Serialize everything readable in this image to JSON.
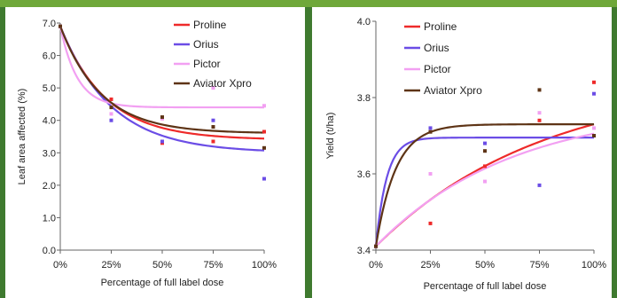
{
  "chart_data": [
    {
      "type": "line",
      "ylabel": "Leaf area affected (%)",
      "xlabel": "Percentage of full label dose",
      "x_ticks": [
        "0%",
        "25%",
        "50%",
        "75%",
        "100%"
      ],
      "y_ticks": [
        "0.0",
        "1.0",
        "2.0",
        "3.0",
        "4.0",
        "5.0",
        "6.0",
        "7.0"
      ],
      "xlim": [
        0,
        100
      ],
      "ylim": [
        0,
        7
      ],
      "legend": "top-right",
      "grid": false,
      "series": [
        {
          "name": "Proline",
          "color": "#ee2a2a",
          "points": [
            [
              0,
              6.9
            ],
            [
              25,
              4.65
            ],
            [
              50,
              3.3
            ],
            [
              75,
              3.35
            ],
            [
              100,
              3.65
            ]
          ],
          "curve": {
            "asymptote": 3.4,
            "amplitude": 3.5,
            "rate": 0.045
          }
        },
        {
          "name": "Orius",
          "color": "#6b4de6",
          "points": [
            [
              0,
              6.9
            ],
            [
              25,
              4.0
            ],
            [
              50,
              3.35
            ],
            [
              75,
              4.0
            ],
            [
              100,
              2.2
            ]
          ],
          "curve": {
            "asymptote": 3.0,
            "amplitude": 3.9,
            "rate": 0.04
          }
        },
        {
          "name": "Pictor",
          "color": "#f2a0f2",
          "points": [
            [
              0,
              6.9
            ],
            [
              25,
              4.2
            ],
            [
              50,
              4.05
            ],
            [
              75,
              5.0
            ],
            [
              100,
              4.45
            ]
          ],
          "curve": {
            "asymptote": 4.4,
            "amplitude": 2.5,
            "rate": 0.12
          }
        },
        {
          "name": "Aviator Xpro",
          "color": "#5e3416",
          "points": [
            [
              0,
              6.9
            ],
            [
              25,
              4.4
            ],
            [
              50,
              4.1
            ],
            [
              75,
              3.8
            ],
            [
              100,
              3.15
            ]
          ],
          "curve": {
            "asymptote": 3.6,
            "amplitude": 3.3,
            "rate": 0.05
          }
        }
      ]
    },
    {
      "type": "line",
      "ylabel": "Yield (t/ha)",
      "xlabel": "Percentage of full label dose",
      "x_ticks": [
        "0%",
        "25%",
        "50%",
        "75%",
        "100%"
      ],
      "y_ticks": [
        "3.4",
        "3.6",
        "3.8",
        "4.0"
      ],
      "xlim": [
        0,
        100
      ],
      "ylim": [
        3.4,
        4.0
      ],
      "legend": "top-left",
      "grid": false,
      "series": [
        {
          "name": "Proline",
          "color": "#ee2a2a",
          "points": [
            [
              0,
              3.41
            ],
            [
              25,
              3.47
            ],
            [
              50,
              3.62
            ],
            [
              75,
              3.74
            ],
            [
              100,
              3.84
            ]
          ],
          "curve": {
            "asymptote": 3.85,
            "amplitude": -0.44,
            "rate": 0.013
          }
        },
        {
          "name": "Orius",
          "color": "#6b4de6",
          "points": [
            [
              0,
              3.41
            ],
            [
              25,
              3.72
            ],
            [
              50,
              3.68
            ],
            [
              75,
              3.57
            ],
            [
              100,
              3.81
            ]
          ],
          "curve": {
            "asymptote": 3.695,
            "amplitude": -0.285,
            "rate": 0.2
          }
        },
        {
          "name": "Pictor",
          "color": "#f2a0f2",
          "points": [
            [
              0,
              3.41
            ],
            [
              25,
              3.6
            ],
            [
              50,
              3.58
            ],
            [
              75,
              3.76
            ],
            [
              100,
              3.72
            ]
          ],
          "curve": {
            "asymptote": 3.78,
            "amplitude": -0.37,
            "rate": 0.016
          }
        },
        {
          "name": "Aviator Xpro",
          "color": "#5e3416",
          "points": [
            [
              0,
              3.41
            ],
            [
              25,
              3.71
            ],
            [
              50,
              3.66
            ],
            [
              75,
              3.82
            ],
            [
              100,
              3.7
            ]
          ],
          "curve": {
            "asymptote": 3.73,
            "amplitude": -0.32,
            "rate": 0.11
          }
        }
      ]
    }
  ]
}
